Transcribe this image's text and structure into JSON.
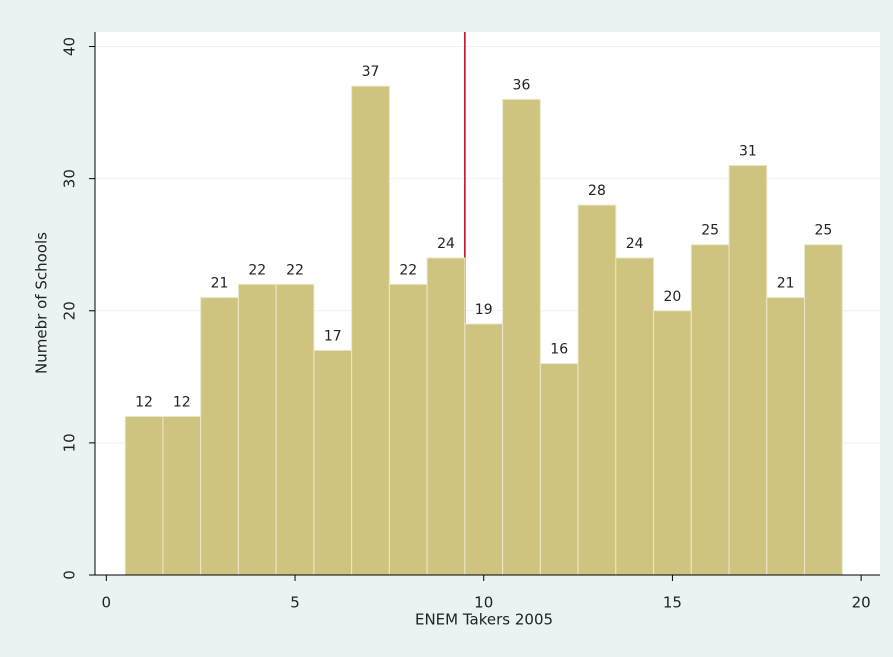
{
  "chart_data": {
    "type": "histogram",
    "x_label": "ENEM Takers 2005",
    "y_label": "Numebr of Schools",
    "bins": [
      0.5,
      1.5,
      2.5,
      3.5,
      4.5,
      5.5,
      6.5,
      7.5,
      8.5,
      9.5,
      10.5,
      11.5,
      12.5,
      13.5,
      14.5,
      15.5,
      16.5,
      17.5,
      18.5,
      19.5
    ],
    "counts": [
      12,
      12,
      21,
      22,
      22,
      17,
      37,
      22,
      24,
      19,
      36,
      16,
      28,
      24,
      20,
      25,
      31,
      21,
      25
    ],
    "color": "#cfc47f",
    "xlim": [
      -0.3,
      20.5
    ],
    "xticks": [
      0,
      5,
      10,
      15,
      20
    ],
    "ylim": [
      0,
      41.1
    ],
    "yticks": [
      0,
      10,
      20,
      30,
      40
    ],
    "grid": true,
    "xline": 9.5,
    "xline_color": "#c00020"
  }
}
